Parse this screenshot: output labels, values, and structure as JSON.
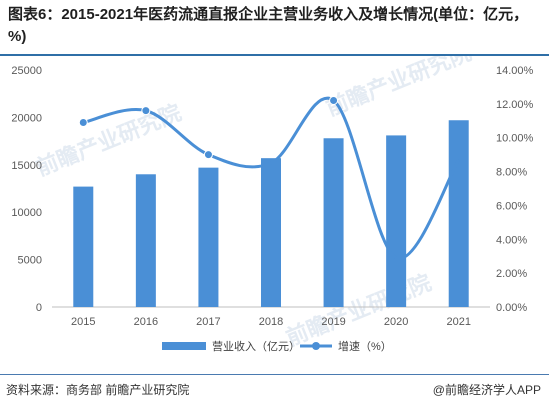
{
  "header": {
    "title": "图表6：2015-2021年医药流通直报企业主营业务收入及增长情况(单位：亿元，%)"
  },
  "footer": {
    "source": "资料来源：商务部 前瞻产业研究院",
    "brand": "@前瞻经济学人APP"
  },
  "watermark": {
    "text": "前瞻产业研究院"
  },
  "chart_data": {
    "type": "bar",
    "categories": [
      "2015",
      "2016",
      "2017",
      "2018",
      "2019",
      "2020",
      "2021"
    ],
    "series": [
      {
        "name": "营业收入（亿元）",
        "type": "bar",
        "axis": "left",
        "color": "#4a8fd6",
        "values": [
          12700,
          14000,
          14700,
          15700,
          17800,
          18100,
          19700
        ]
      },
      {
        "name": "增速（%）",
        "type": "line",
        "axis": "right",
        "color": "#4a8fd6",
        "values": [
          10.9,
          11.6,
          9.0,
          8.5,
          12.2,
          2.9,
          8.7
        ]
      }
    ],
    "ylim_left": [
      0,
      25000
    ],
    "yticks_left": [
      "0",
      "5000",
      "10000",
      "15000",
      "20000",
      "25000"
    ],
    "ylim_right": [
      0,
      14
    ],
    "yticks_right": [
      "0.00%",
      "2.00%",
      "4.00%",
      "6.00%",
      "8.00%",
      "10.00%",
      "12.00%",
      "14.00%"
    ],
    "legend_position": "bottom",
    "grid": false
  }
}
